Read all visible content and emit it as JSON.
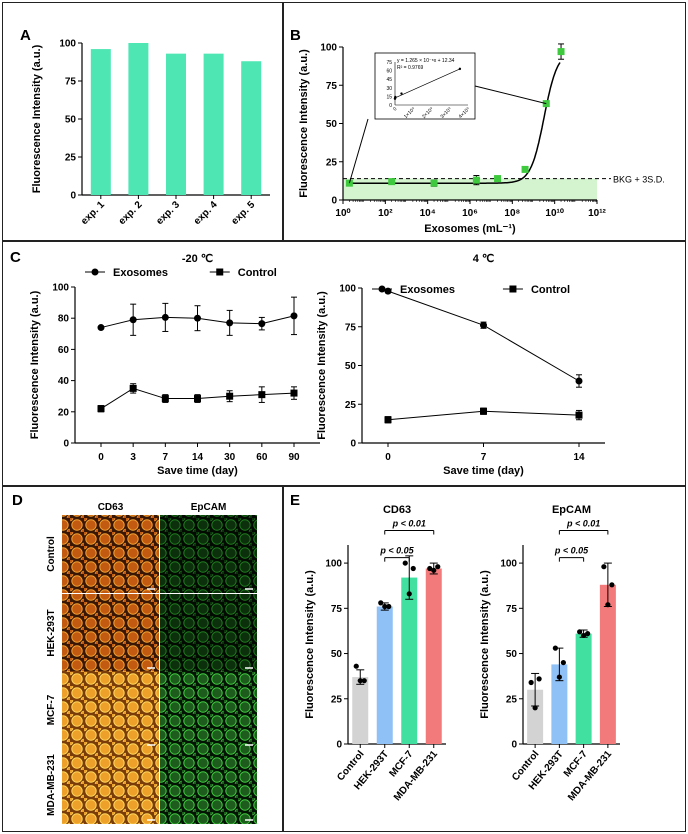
{
  "panels": [
    {
      "label": "A"
    },
    {
      "label": "B"
    },
    {
      "label": "C"
    },
    {
      "label": "D"
    },
    {
      "label": "E"
    }
  ],
  "colors": {
    "teal": "#4ee6b3",
    "green": "#3ec93e",
    "bkg_band": "#d4f4d0",
    "blue": "#8fc0f6",
    "mint": "#42e0a0",
    "red": "#f27a7a",
    "gray": "#d3d3d3"
  },
  "chart_data": [
    {
      "id": "A",
      "type": "bar",
      "ylabel": "Fluorescence Intensity (a.u.)",
      "xlabel": "",
      "categories": [
        "exp. 1",
        "exp. 2",
        "exp. 3",
        "exp. 4",
        "exp. 5"
      ],
      "values": [
        96,
        100,
        93,
        93,
        88
      ],
      "ylim": [
        0,
        100
      ],
      "yticks": [
        "0",
        "25",
        "50",
        "75",
        "100"
      ]
    },
    {
      "id": "B",
      "type": "scatter",
      "xscale": "log",
      "xlabel": "Exosomes (mL⁻¹)",
      "ylabel": "Fluorescence Intensity (a.u.)",
      "xlim": [
        1,
        1000000000000.0
      ],
      "ylim": [
        0,
        100
      ],
      "xticks": [
        "10⁰",
        "10²",
        "10⁴",
        "10⁶",
        "10⁸",
        "10¹⁰",
        "10¹²"
      ],
      "yticks": [
        "0",
        "25",
        "50",
        "75",
        "100"
      ],
      "x": [
        2,
        200,
        20000,
        2000000,
        20000000,
        400000000,
        4000000000,
        20000000000
      ],
      "y": [
        11,
        12,
        11,
        13,
        14,
        20,
        63,
        97
      ],
      "yerr": [
        1,
        1,
        2,
        3,
        1,
        1,
        1,
        5
      ],
      "threshold": {
        "label": "BKG + 3S.D.",
        "y": 14
      },
      "inset": {
        "equation": "y = 1.265 × 10⁻⁸x + 12.34",
        "r2": "R² = 0.9769",
        "xticks": [
          "0",
          "1×10⁹",
          "2×10⁹",
          "3×10⁹",
          "4×10⁹"
        ],
        "yticks": [
          "0",
          "15",
          "30",
          "45",
          "60",
          "75"
        ],
        "x": [
          0,
          4000000,
          20000000,
          400000000,
          4000000000
        ],
        "y": [
          11,
          12,
          14,
          20,
          63
        ]
      }
    },
    {
      "id": "C1",
      "type": "line",
      "title": "-20 ℃",
      "xlabel": "Save time (day)",
      "ylabel": "Fluorescence Intensity (a.u.)",
      "categories": [
        "0",
        "3",
        "7",
        "14",
        "30",
        "60",
        "90"
      ],
      "ylim": [
        0,
        100
      ],
      "yticks": [
        "0",
        "20",
        "40",
        "60",
        "80",
        "100"
      ],
      "series": [
        {
          "name": "Exosomes",
          "values": [
            74,
            79,
            80.5,
            80,
            77,
            76.5,
            81.5
          ],
          "err": [
            0,
            10,
            9,
            8,
            8,
            4,
            12
          ]
        },
        {
          "name": "Control",
          "values": [
            22,
            35,
            28.5,
            28.5,
            30,
            31,
            32
          ],
          "err": [
            2,
            3,
            2.5,
            2.5,
            3.5,
            5,
            4
          ]
        }
      ]
    },
    {
      "id": "C2",
      "type": "line",
      "title": "4 ℃",
      "xlabel": "Save time (day)",
      "ylabel": "Fluorescence Intensity (a.u.)",
      "categories": [
        "0",
        "7",
        "14"
      ],
      "ylim": [
        0,
        100
      ],
      "yticks": [
        "0",
        "25",
        "50",
        "75",
        "100"
      ],
      "series": [
        {
          "name": "Exosomes",
          "values": [
            98,
            76,
            40
          ],
          "err": [
            1,
            2,
            4
          ]
        },
        {
          "name": "Control",
          "values": [
            15,
            20.5,
            18
          ],
          "err": [
            2,
            2,
            3
          ]
        }
      ]
    },
    {
      "id": "E1",
      "type": "bar",
      "title": "CD63",
      "ylabel": "Fluorescence Intensity (a.u.)",
      "categories": [
        "Control",
        "HEK-293T",
        "MCF-7",
        "MDA-MB-231"
      ],
      "values": [
        37,
        76,
        92,
        97
      ],
      "err": [
        4,
        2,
        12,
        3
      ],
      "points": [
        [
          43,
          35,
          35
        ],
        [
          78,
          76,
          76
        ],
        [
          100,
          97,
          83
        ],
        [
          97,
          98,
          96
        ]
      ],
      "ylim": [
        0,
        110
      ],
      "yticks": [
        "0",
        "25",
        "50",
        "75",
        "100"
      ],
      "annotations": [
        {
          "text": "p < 0.05",
          "from": 1,
          "to": 2
        },
        {
          "text": "p < 0.01",
          "from": 1,
          "to": 3
        }
      ]
    },
    {
      "id": "E2",
      "type": "bar",
      "title": "EpCAM",
      "ylabel": "Fluorescence Intensity (a.u.)",
      "categories": [
        "Control",
        "HEK-293T",
        "MCF-7",
        "MDA-MB-231"
      ],
      "values": [
        30,
        44,
        61,
        88
      ],
      "err": [
        9,
        9,
        2,
        12
      ],
      "points": [
        [
          34,
          36,
          20
        ],
        [
          53,
          45,
          37
        ],
        [
          62,
          61,
          60
        ],
        [
          98,
          88,
          77
        ]
      ],
      "ylim": [
        0,
        110
      ],
      "yticks": [
        "0",
        "25",
        "50",
        "75",
        "100"
      ],
      "annotations": [
        {
          "text": "p < 0.05",
          "from": 1,
          "to": 2
        },
        {
          "text": "p < 0.01",
          "from": 1,
          "to": 3
        }
      ]
    }
  ],
  "microscopy": {
    "column_headers": [
      "CD63",
      "EpCAM"
    ],
    "row_labels": [
      "Control",
      "HEK-293T",
      "MCF-7",
      "MDA-MB-231"
    ]
  }
}
